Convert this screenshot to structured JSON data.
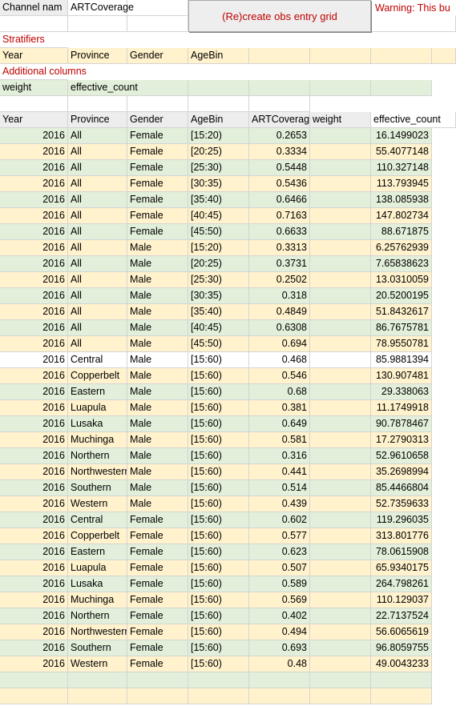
{
  "channel": {
    "label": "Channel nam",
    "value": "ARTCoverage"
  },
  "button_label": "(Re)create obs entry grid",
  "warning_text": "Warning: This bu",
  "stratifiers": {
    "title": "Stratifiers",
    "values": [
      "Year",
      "Province",
      "Gender",
      "AgeBin"
    ]
  },
  "additional": {
    "title": "Additional columns",
    "values": [
      "weight",
      "effective_count"
    ]
  },
  "table": {
    "headers": [
      "Year",
      "Province",
      "Gender",
      "AgeBin",
      "ARTCoverag",
      "weight",
      "effective_count"
    ],
    "rows": [
      [
        "2016",
        "All",
        "Female",
        "[15:20)",
        "0.2653",
        "",
        "16.1499023"
      ],
      [
        "2016",
        "All",
        "Female",
        "[20:25)",
        "0.3334",
        "",
        "55.4077148"
      ],
      [
        "2016",
        "All",
        "Female",
        "[25:30)",
        "0.5448",
        "",
        "110.327148"
      ],
      [
        "2016",
        "All",
        "Female",
        "[30:35)",
        "0.5436",
        "",
        "113.793945"
      ],
      [
        "2016",
        "All",
        "Female",
        "[35:40)",
        "0.6466",
        "",
        "138.085938"
      ],
      [
        "2016",
        "All",
        "Female",
        "[40:45)",
        "0.7163",
        "",
        "147.802734"
      ],
      [
        "2016",
        "All",
        "Female",
        "[45:50)",
        "0.6633",
        "",
        "88.671875"
      ],
      [
        "2016",
        "All",
        "Male",
        "[15:20)",
        "0.3313",
        "",
        "6.25762939"
      ],
      [
        "2016",
        "All",
        "Male",
        "[20:25)",
        "0.3731",
        "",
        "7.65838623"
      ],
      [
        "2016",
        "All",
        "Male",
        "[25:30)",
        "0.2502",
        "",
        "13.0310059"
      ],
      [
        "2016",
        "All",
        "Male",
        "[30:35)",
        "0.318",
        "",
        "20.5200195"
      ],
      [
        "2016",
        "All",
        "Male",
        "[35:40)",
        "0.4849",
        "",
        "51.8432617"
      ],
      [
        "2016",
        "All",
        "Male",
        "[40:45)",
        "0.6308",
        "",
        "86.7675781"
      ],
      [
        "2016",
        "All",
        "Male",
        "[45:50)",
        "0.694",
        "",
        "78.9550781"
      ],
      [
        "2016",
        "Central",
        "Male",
        "[15:60)",
        "0.468",
        "",
        "85.9881394"
      ],
      [
        "2016",
        "Copperbelt",
        "Male",
        "[15:60)",
        "0.546",
        "",
        "130.907481"
      ],
      [
        "2016",
        "Eastern",
        "Male",
        "[15:60)",
        "0.68",
        "",
        "29.338063"
      ],
      [
        "2016",
        "Luapula",
        "Male",
        "[15:60)",
        "0.381",
        "",
        "11.1749918"
      ],
      [
        "2016",
        "Lusaka",
        "Male",
        "[15:60)",
        "0.649",
        "",
        "90.7878467"
      ],
      [
        "2016",
        "Muchinga",
        "Male",
        "[15:60)",
        "0.581",
        "",
        "17.2790313"
      ],
      [
        "2016",
        "Northern",
        "Male",
        "[15:60)",
        "0.316",
        "",
        "52.9610658"
      ],
      [
        "2016",
        "Northwestern",
        "Male",
        "[15:60)",
        "0.441",
        "",
        "35.2698994"
      ],
      [
        "2016",
        "Southern",
        "Male",
        "[15:60)",
        "0.514",
        "",
        "85.4466804"
      ],
      [
        "2016",
        "Western",
        "Male",
        "[15:60)",
        "0.439",
        "",
        "52.7359633"
      ],
      [
        "2016",
        "Central",
        "Female",
        "[15:60)",
        "0.602",
        "",
        "119.296035"
      ],
      [
        "2016",
        "Copperbelt",
        "Female",
        "[15:60)",
        "0.577",
        "",
        "313.801776"
      ],
      [
        "2016",
        "Eastern",
        "Female",
        "[15:60)",
        "0.623",
        "",
        "78.0615908"
      ],
      [
        "2016",
        "Luapula",
        "Female",
        "[15:60)",
        "0.507",
        "",
        "65.9340175"
      ],
      [
        "2016",
        "Lusaka",
        "Female",
        "[15:60)",
        "0.589",
        "",
        "264.798261"
      ],
      [
        "2016",
        "Muchinga",
        "Female",
        "[15:60)",
        "0.569",
        "",
        "110.129037"
      ],
      [
        "2016",
        "Northern",
        "Female",
        "[15:60)",
        "0.402",
        "",
        "22.7137524"
      ],
      [
        "2016",
        "Northwestern",
        "Female",
        "[15:60)",
        "0.494",
        "",
        "56.6065619"
      ],
      [
        "2016",
        "Southern",
        "Female",
        "[15:60)",
        "0.693",
        "",
        "96.8059755"
      ],
      [
        "2016",
        "Western",
        "Female",
        "[15:60)",
        "0.48",
        "",
        "49.0043233"
      ]
    ]
  },
  "colors": {
    "row_green": "#e2efda",
    "row_yellow": "#fff2cc",
    "highlight_row": "#ffffff",
    "header_gray": "#ededed",
    "accent_red": "#c00000"
  }
}
